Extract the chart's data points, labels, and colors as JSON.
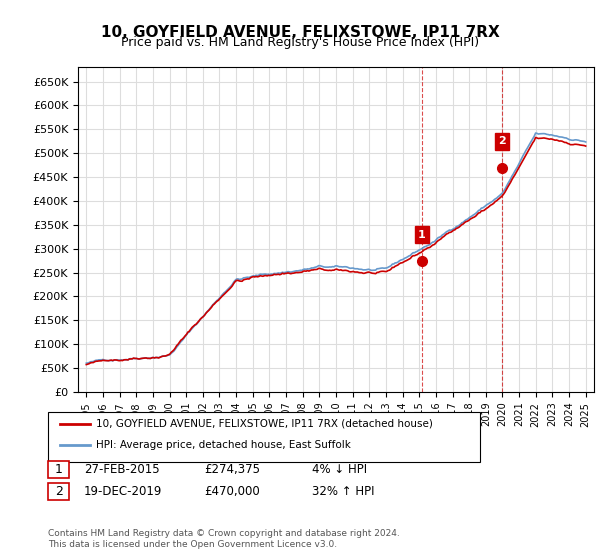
{
  "title": "10, GOYFIELD AVENUE, FELIXSTOWE, IP11 7RX",
  "subtitle": "Price paid vs. HM Land Registry's House Price Index (HPI)",
  "hpi_color": "#6699cc",
  "price_color": "#cc0000",
  "marker_color": "#cc0000",
  "background_color": "#ffffff",
  "grid_color": "#dddddd",
  "ylim": [
    0,
    680000
  ],
  "yticks": [
    0,
    50000,
    100000,
    150000,
    200000,
    250000,
    300000,
    350000,
    400000,
    450000,
    500000,
    550000,
    600000,
    650000
  ],
  "legend_label_red": "10, GOYFIELD AVENUE, FELIXSTOWE, IP11 7RX (detached house)",
  "legend_label_blue": "HPI: Average price, detached house, East Suffolk",
  "transaction1_label": "1",
  "transaction1_date": "27-FEB-2015",
  "transaction1_price": "£274,375",
  "transaction1_hpi": "4% ↓ HPI",
  "transaction2_label": "2",
  "transaction2_date": "19-DEC-2019",
  "transaction2_price": "£470,000",
  "transaction2_hpi": "32% ↑ HPI",
  "footer": "Contains HM Land Registry data © Crown copyright and database right 2024.\nThis data is licensed under the Open Government Licence v3.0."
}
